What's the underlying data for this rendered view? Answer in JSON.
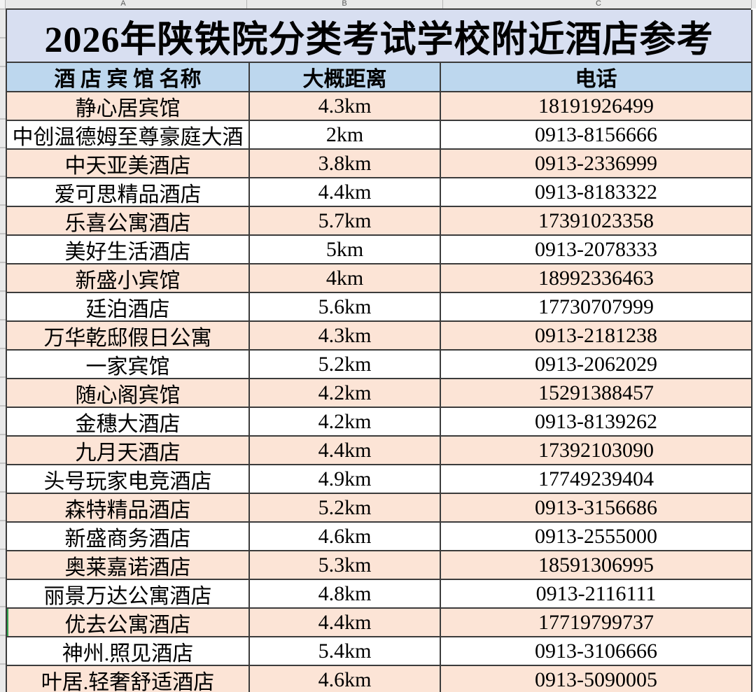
{
  "spreadsheet": {
    "column_letters": [
      "A",
      "B",
      "C"
    ]
  },
  "title": "2026年陕铁院分类考试学校附近酒店参考",
  "table": {
    "headers": [
      "酒 店 宾 馆 名称",
      "大概距离",
      "电话"
    ],
    "rows": [
      {
        "name": "静心居宾馆",
        "distance": "4.3km",
        "phone": "18191926499",
        "selected": false
      },
      {
        "name": "中创温德姆至尊豪庭大酒",
        "distance": "2km",
        "phone": "0913-8156666",
        "selected": false
      },
      {
        "name": "中天亚美酒店",
        "distance": "3.8km",
        "phone": "0913-2336999",
        "selected": false
      },
      {
        "name": "爱可思精品酒店",
        "distance": "4.4km",
        "phone": "0913-8183322",
        "selected": false
      },
      {
        "name": "乐喜公寓酒店",
        "distance": "5.7km",
        "phone": "17391023358",
        "selected": false
      },
      {
        "name": "美好生活酒店",
        "distance": "5km",
        "phone": "0913-2078333",
        "selected": false
      },
      {
        "name": "新盛小宾馆",
        "distance": "4km",
        "phone": "18992336463",
        "selected": false
      },
      {
        "name": "廷泊酒店",
        "distance": "5.6km",
        "phone": "17730707999",
        "selected": false
      },
      {
        "name": "万华乾邸假日公寓",
        "distance": "4.3km",
        "phone": "0913-2181238",
        "selected": false
      },
      {
        "name": "一家宾馆",
        "distance": "5.2km",
        "phone": "0913-2062029",
        "selected": false
      },
      {
        "name": "随心阁宾馆",
        "distance": "4.2km",
        "phone": "15291388457",
        "selected": false
      },
      {
        "name": "金穗大酒店",
        "distance": "4.2km",
        "phone": "0913-8139262",
        "selected": false
      },
      {
        "name": "九月天酒店",
        "distance": "4.4km",
        "phone": "17392103090",
        "selected": false
      },
      {
        "name": "头号玩家电竞酒店",
        "distance": "4.9km",
        "phone": "17749239404",
        "selected": false
      },
      {
        "name": "森特精品酒店",
        "distance": "5.2km",
        "phone": "0913-3156686",
        "selected": false
      },
      {
        "name": "新盛商务酒店",
        "distance": "4.6km",
        "phone": "0913-2555000",
        "selected": false
      },
      {
        "name": "奥莱嘉诺酒店",
        "distance": "5.3km",
        "phone": "18591306995",
        "selected": false
      },
      {
        "name": "丽景万达公寓酒店",
        "distance": "4.8km",
        "phone": "0913-2116111",
        "selected": false
      },
      {
        "name": "优去公寓酒店",
        "distance": "4.4km",
        "phone": "17719799737",
        "selected": true
      },
      {
        "name": "神州.照见酒店",
        "distance": "5.4km",
        "phone": "0913-3106666",
        "selected": false
      },
      {
        "name": "叶居.轻奢舒适酒店",
        "distance": "4.6km",
        "phone": "0913-5090005",
        "selected": false
      }
    ]
  },
  "colors": {
    "title_bg": "#d8dff1",
    "header_bg": "#bdd7ee",
    "row_odd_bg": "#fce4d6",
    "row_even_bg": "#ffffff",
    "selection_green": "#2ea44f",
    "border": "#3b3b3b"
  }
}
